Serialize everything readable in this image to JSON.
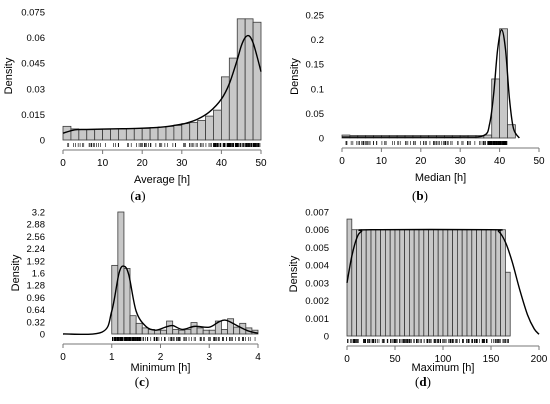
{
  "chart_data": [
    {
      "type": "bar",
      "panel_caption": "(a)",
      "xlabel": "Average [h]",
      "ylabel": "Density",
      "xlim": [
        0,
        50
      ],
      "ylim": [
        0,
        0.075
      ],
      "xticks": [
        0,
        10,
        20,
        30,
        40,
        50
      ],
      "yticks": [
        0,
        0.015,
        0.03,
        0.045,
        0.06,
        0.075
      ],
      "ytick_labels": [
        "0",
        "0.015",
        "0.03",
        "0.045",
        "0.06",
        "0.075"
      ],
      "bin_edges": [
        0,
        2,
        4,
        6,
        8,
        10,
        12,
        14,
        16,
        18,
        20,
        22,
        24,
        26,
        28,
        30,
        32,
        34,
        36,
        38,
        40,
        42,
        44,
        46,
        48,
        50
      ],
      "values": [
        0.008,
        0.0065,
        0.006,
        0.006,
        0.0062,
        0.0063,
        0.0064,
        0.0065,
        0.0068,
        0.0067,
        0.0068,
        0.0072,
        0.0076,
        0.008,
        0.0086,
        0.0096,
        0.0102,
        0.0115,
        0.014,
        0.0175,
        0.037,
        0.048,
        0.071,
        0.071,
        0.069
      ],
      "density_curve": [
        [
          0,
          0.004
        ],
        [
          3,
          0.006
        ],
        [
          6,
          0.0062
        ],
        [
          10,
          0.0064
        ],
        [
          15,
          0.0066
        ],
        [
          20,
          0.0069
        ],
        [
          25,
          0.0076
        ],
        [
          28,
          0.0085
        ],
        [
          31,
          0.0098
        ],
        [
          34,
          0.0122
        ],
        [
          37,
          0.0165
        ],
        [
          40,
          0.024
        ],
        [
          42,
          0.033
        ],
        [
          44,
          0.047
        ],
        [
          45,
          0.055
        ],
        [
          46,
          0.06
        ],
        [
          47,
          0.061
        ],
        [
          48,
          0.057
        ],
        [
          49,
          0.049
        ],
        [
          50,
          0.04
        ]
      ],
      "rug": "dense toward upper end (≈38–49)"
    },
    {
      "type": "bar",
      "panel_caption": "(b)",
      "xlabel": "Median [h]",
      "ylabel": "Density",
      "xlim": [
        0,
        50
      ],
      "ylim": [
        0,
        0.25
      ],
      "xticks": [
        0,
        10,
        20,
        30,
        40,
        50
      ],
      "yticks": [
        0,
        0.05,
        0.1,
        0.15,
        0.2,
        0.25
      ],
      "ytick_labels": [
        "0",
        "0.05",
        "0.1",
        "0.15",
        "0.2",
        "0.25"
      ],
      "bin_edges": [
        0,
        2,
        4,
        6,
        8,
        10,
        12,
        14,
        16,
        18,
        20,
        22,
        24,
        26,
        28,
        30,
        32,
        34,
        36,
        38,
        40,
        42,
        44
      ],
      "values": [
        0.006,
        0.005,
        0.005,
        0.005,
        0.005,
        0.005,
        0.005,
        0.005,
        0.005,
        0.005,
        0.005,
        0.005,
        0.005,
        0.005,
        0.005,
        0.005,
        0.005,
        0.005,
        0.006,
        0.12,
        0.222,
        0.027
      ],
      "density_curve": [
        [
          0,
          0.002
        ],
        [
          10,
          0.002
        ],
        [
          20,
          0.002
        ],
        [
          30,
          0.002
        ],
        [
          36,
          0.005
        ],
        [
          37.5,
          0.03
        ],
        [
          38.5,
          0.09
        ],
        [
          39.5,
          0.18
        ],
        [
          40.5,
          0.22
        ],
        [
          41.5,
          0.18
        ],
        [
          42.5,
          0.08
        ],
        [
          43.5,
          0.02
        ],
        [
          45,
          0
        ]
      ]
    },
    {
      "type": "bar",
      "panel_caption": "(c)",
      "xlabel": "Minimum [h]",
      "ylabel": "Density",
      "xlim": [
        0,
        4
      ],
      "ylim": [
        0,
        3.2
      ],
      "xticks": [
        0,
        1,
        2,
        3,
        4
      ],
      "yticks": [
        0,
        0.32,
        0.64,
        0.96,
        1.28,
        1.6,
        1.92,
        2.24,
        2.56,
        2.88,
        3.2
      ],
      "ytick_labels": [
        "0",
        "0.32",
        "0.64",
        "0.96",
        "1.28",
        "1.6",
        "1.92",
        "2.24",
        "2.56",
        "2.88",
        "3.2"
      ],
      "bin_edges": [
        1,
        1.125,
        1.25,
        1.375,
        1.5,
        1.625,
        1.75,
        1.875,
        2,
        2.125,
        2.25,
        2.375,
        2.5,
        2.625,
        2.75,
        2.875,
        3,
        3.125,
        3.25,
        3.375,
        3.5,
        3.625,
        3.75,
        3.875,
        4
      ],
      "values": [
        1.8,
        3.2,
        1.72,
        0.48,
        0.28,
        0.16,
        0.12,
        0.1,
        0.1,
        0.34,
        0.12,
        0.1,
        0.12,
        0.3,
        0.16,
        0.1,
        0.1,
        0.34,
        0.12,
        0.4,
        0.18,
        0.28,
        0.16,
        0.1
      ],
      "density_curve": [
        [
          0,
          0
        ],
        [
          0.8,
          0.05
        ],
        [
          1.0,
          0.6
        ],
        [
          1.15,
          1.6
        ],
        [
          1.25,
          1.78
        ],
        [
          1.35,
          1.55
        ],
        [
          1.5,
          0.6
        ],
        [
          1.7,
          0.2
        ],
        [
          1.9,
          0.1
        ],
        [
          2.1,
          0.18
        ],
        [
          2.25,
          0.22
        ],
        [
          2.45,
          0.12
        ],
        [
          2.7,
          0.2
        ],
        [
          3.0,
          0.18
        ],
        [
          3.2,
          0.32
        ],
        [
          3.35,
          0.36
        ],
        [
          3.6,
          0.2
        ],
        [
          3.8,
          0.08
        ],
        [
          4.0,
          0.02
        ]
      ]
    },
    {
      "type": "bar",
      "panel_caption": "(d)",
      "xlabel": "Maximum [h]",
      "ylabel": "Density",
      "xlim": [
        0,
        200
      ],
      "ylim": [
        0,
        0.007
      ],
      "xticks": [
        0,
        50,
        100,
        150,
        200
      ],
      "yticks": [
        0,
        0.001,
        0.002,
        0.003,
        0.004,
        0.005,
        0.006,
        0.007
      ],
      "ytick_labels": [
        "0",
        "0.001",
        "0.002",
        "0.003",
        "0.004",
        "0.005",
        "0.006",
        "0.007"
      ],
      "bin_edges": [
        0,
        5,
        10,
        15,
        20,
        25,
        30,
        35,
        40,
        45,
        50,
        55,
        60,
        65,
        70,
        75,
        80,
        85,
        90,
        95,
        100,
        105,
        110,
        115,
        120,
        125,
        130,
        135,
        140,
        145,
        150,
        155,
        160,
        165,
        170
      ],
      "values": [
        0.0066,
        0.006,
        0.006,
        0.006,
        0.006,
        0.006,
        0.006,
        0.006,
        0.006,
        0.006,
        0.006,
        0.006,
        0.006,
        0.006,
        0.006,
        0.006,
        0.006,
        0.006,
        0.006,
        0.006,
        0.006,
        0.006,
        0.006,
        0.006,
        0.006,
        0.006,
        0.006,
        0.006,
        0.006,
        0.006,
        0.006,
        0.006,
        0.006,
        0.0036
      ],
      "density_curve": [
        [
          0,
          0.003
        ],
        [
          5,
          0.0045
        ],
        [
          10,
          0.0055
        ],
        [
          15,
          0.0059
        ],
        [
          25,
          0.006
        ],
        [
          150,
          0.006
        ],
        [
          158,
          0.0059
        ],
        [
          165,
          0.0053
        ],
        [
          172,
          0.0042
        ],
        [
          180,
          0.0026
        ],
        [
          188,
          0.0012
        ],
        [
          195,
          0.0004
        ],
        [
          200,
          0.0001
        ]
      ]
    }
  ]
}
